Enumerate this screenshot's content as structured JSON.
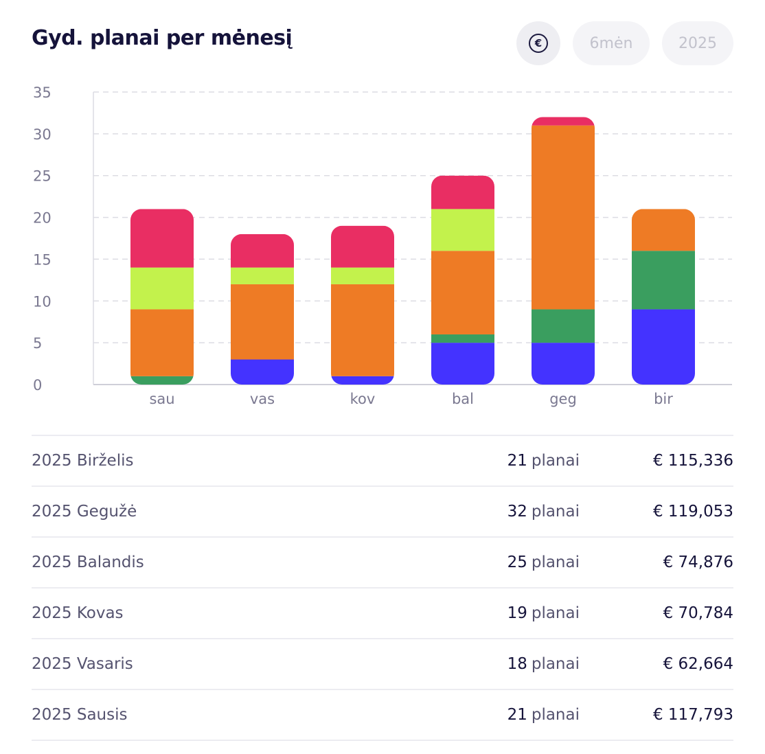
{
  "header": {
    "title": "Gyd. planai per mėnesį",
    "currency_symbol": "€",
    "period_label": "6mėn",
    "year_label": "2025"
  },
  "chart_data": {
    "type": "bar",
    "stacked": true,
    "categories": [
      "sau",
      "vas",
      "kov",
      "bal",
      "geg",
      "bir"
    ],
    "ylim": [
      0,
      35
    ],
    "yticks": [
      0,
      5,
      10,
      15,
      20,
      25,
      30,
      35
    ],
    "grid": true,
    "series": [
      {
        "color": "#4433ff",
        "values": [
          0,
          3,
          1,
          5,
          5,
          9
        ]
      },
      {
        "color": "#3a9e5f",
        "values": [
          1,
          0,
          0,
          1,
          4,
          7
        ]
      },
      {
        "color": "#ee7b25",
        "values": [
          8,
          9,
          11,
          10,
          22,
          5
        ]
      },
      {
        "color": "#c3f24c",
        "values": [
          5,
          2,
          2,
          5,
          0,
          0
        ]
      },
      {
        "color": "#e92e63",
        "values": [
          7,
          4,
          5,
          4,
          1,
          0
        ]
      }
    ]
  },
  "table": {
    "rows": [
      {
        "month": "2025 Birželis",
        "count": "21",
        "unit": "planai",
        "amount": "€ 115,336"
      },
      {
        "month": "2025 Gegužė",
        "count": "32",
        "unit": "planai",
        "amount": "€ 119,053"
      },
      {
        "month": "2025 Balandis",
        "count": "25",
        "unit": "planai",
        "amount": "€ 74,876"
      },
      {
        "month": "2025 Kovas",
        "count": "19",
        "unit": "planai",
        "amount": "€ 70,784"
      },
      {
        "month": "2025 Vasaris",
        "count": "18",
        "unit": "planai",
        "amount": "€ 62,664"
      },
      {
        "month": "2025 Sausis",
        "count": "21",
        "unit": "planai",
        "amount": "€ 117,793"
      }
    ]
  }
}
